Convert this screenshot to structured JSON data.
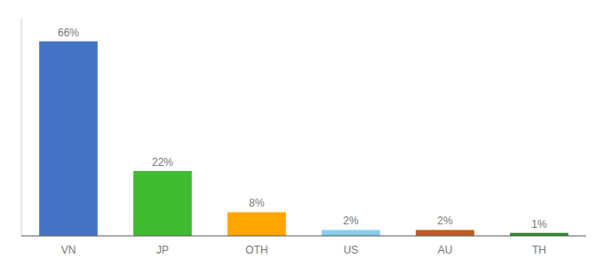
{
  "chart_data": {
    "type": "bar",
    "categories": [
      "VN",
      "JP",
      "OTH",
      "US",
      "AU",
      "TH"
    ],
    "values": [
      66,
      22,
      8,
      2,
      2,
      1
    ],
    "value_labels": [
      "66%",
      "22%",
      "8%",
      "2%",
      "2%",
      "1%"
    ],
    "colors": [
      "#4472C4",
      "#3EBB2E",
      "#FFA500",
      "#87CEEB",
      "#C05A1F",
      "#2E8B2E"
    ],
    "ylim": [
      0,
      74
    ],
    "data_labels": true,
    "tick_labels": "x"
  }
}
